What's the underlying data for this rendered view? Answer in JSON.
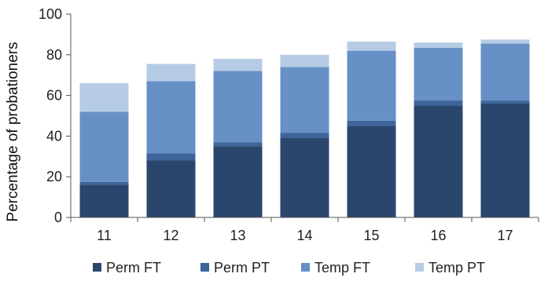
{
  "chart_data": {
    "type": "bar",
    "stacked": true,
    "title": "",
    "xlabel": "",
    "ylabel": "Percentage of probationers",
    "ylim": [
      0,
      100
    ],
    "yticks": [
      "0",
      "20",
      "40",
      "60",
      "80",
      "100"
    ],
    "categories": [
      "11",
      "12",
      "13",
      "14",
      "15",
      "16",
      "17"
    ],
    "series": [
      {
        "name": "Perm FT",
        "color": "#2a466d",
        "values": [
          16,
          28,
          35,
          39,
          45,
          55,
          56
        ]
      },
      {
        "name": "Perm PT",
        "color": "#3e6599",
        "values": [
          1.5,
          3.5,
          2,
          2.5,
          2.5,
          2.5,
          1.5
        ]
      },
      {
        "name": "Temp FT",
        "color": "#6690c6",
        "values": [
          34.5,
          35.5,
          35,
          32.5,
          34.5,
          26,
          28
        ]
      },
      {
        "name": "Temp PT",
        "color": "#b6cce5",
        "values": [
          14,
          8.5,
          6,
          6,
          4.5,
          2.5,
          2
        ]
      }
    ],
    "grid": false,
    "legend": "bottom"
  }
}
